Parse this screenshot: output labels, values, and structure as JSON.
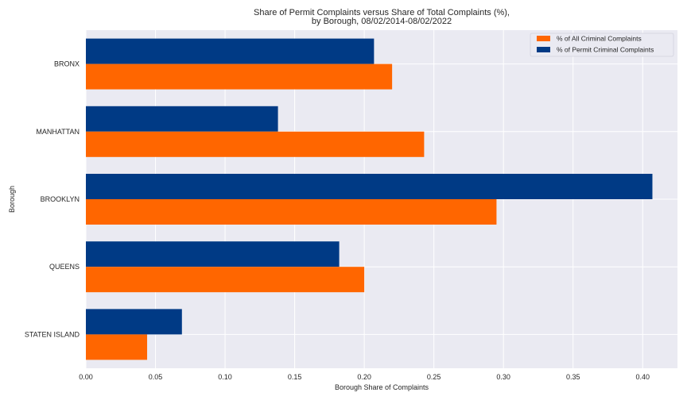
{
  "chart_data": {
    "type": "bar",
    "orientation": "horizontal",
    "title": "Share of Permit Complaints versus Share of Total Complaints (%),",
    "subtitle": "by Borough, 08/02/2014-08/02/2022",
    "xlabel": "Borough Share of Complaints",
    "ylabel": "Borough",
    "categories": [
      "BRONX",
      "MANHATTAN",
      "BROOKLYN",
      "QUEENS",
      "STATEN ISLAND"
    ],
    "series": [
      {
        "name": "% of All Criminal Complaints",
        "color": "#ff6600",
        "values": [
          0.22,
          0.243,
          0.295,
          0.2,
          0.044
        ]
      },
      {
        "name": "% of Permit Criminal Complaints",
        "color": "#003a85",
        "values": [
          0.207,
          0.138,
          0.407,
          0.182,
          0.069
        ]
      }
    ],
    "xlim": [
      0,
      0.425
    ],
    "xticks": [
      "0.00",
      "0.05",
      "0.10",
      "0.15",
      "0.20",
      "0.25",
      "0.30",
      "0.35",
      "0.40"
    ],
    "grid": true,
    "legend_position": "top-right",
    "background_color": "#eaeaf2",
    "grid_color": "#ffffff"
  }
}
